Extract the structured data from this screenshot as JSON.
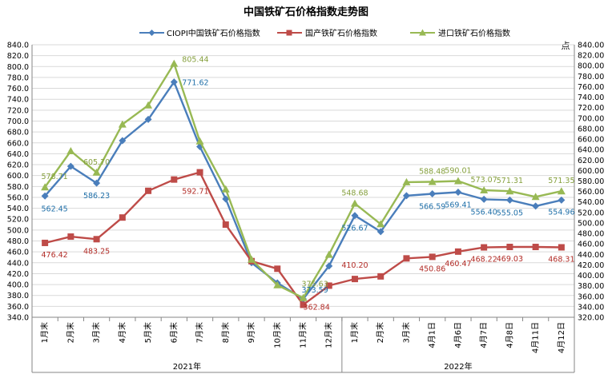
{
  "chart_data": {
    "type": "line",
    "title": "中国铁矿石价格指数走势图",
    "x": [
      "1月末",
      "2月末",
      "3月末",
      "4月末",
      "5月末",
      "6月末",
      "7月末",
      "8月末",
      "9月末",
      "10月末",
      "11月末",
      "12月末",
      "1月末",
      "2月末",
      "3月末",
      "4月1日",
      "4月6日",
      "4月7日",
      "4月8日",
      "4月11日",
      "4月12日"
    ],
    "x_groups": [
      {
        "label": "2021年",
        "start": 0,
        "end": 11
      },
      {
        "label": "2022年",
        "start": 12,
        "end": 20
      }
    ],
    "series": [
      {
        "name": "CIOPI中国铁矿石价格指数",
        "color": "#4a7ebb",
        "marker": "diamond",
        "values": [
          562.45,
          617,
          586.23,
          664,
          703,
          771.62,
          653,
          557,
          440,
          403,
          373.59,
          434,
          526.67,
          497,
          563,
          566.59,
          569.41,
          556.4,
          555.05,
          544,
          554.96
        ]
      },
      {
        "name": "国产铁矿石价格指数",
        "color": "#be4b48",
        "marker": "square",
        "values": [
          476.42,
          488,
          483.25,
          523,
          572,
          592.71,
          606,
          510,
          443,
          429,
          362.84,
          398,
          410.2,
          415,
          448,
          450.86,
          460.47,
          468.22,
          469.03,
          469,
          468.31
        ]
      },
      {
        "name": "进口铁矿石价格指数",
        "color": "#98b954",
        "marker": "triangle",
        "values": [
          578.71,
          645,
          605.7,
          694,
          729,
          805.44,
          663,
          575,
          446,
          399,
          375.63,
          455,
          548.68,
          511,
          588,
          588.48,
          590.01,
          573.07,
          571.31,
          561,
          571.35
        ]
      }
    ],
    "data_labels": [
      {
        "series": 0,
        "index": 0,
        "text": "562.45"
      },
      {
        "series": 0,
        "index": 2,
        "text": "586.23"
      },
      {
        "series": 0,
        "index": 5,
        "text": "771.62"
      },
      {
        "series": 0,
        "index": 10,
        "text": "373.59"
      },
      {
        "series": 0,
        "index": 12,
        "text": "526.67"
      },
      {
        "series": 0,
        "index": 15,
        "text": "566.59"
      },
      {
        "series": 0,
        "index": 16,
        "text": "569.41"
      },
      {
        "series": 0,
        "index": 17,
        "text": "556.40"
      },
      {
        "series": 0,
        "index": 18,
        "text": "555.05"
      },
      {
        "series": 0,
        "index": 20,
        "text": "554.96"
      },
      {
        "series": 1,
        "index": 0,
        "text": "476.42"
      },
      {
        "series": 1,
        "index": 2,
        "text": "483.25"
      },
      {
        "series": 1,
        "index": 5,
        "text": "592.71"
      },
      {
        "series": 1,
        "index": 10,
        "text": "362.84"
      },
      {
        "series": 1,
        "index": 12,
        "text": "410.20"
      },
      {
        "series": 1,
        "index": 15,
        "text": "450.86"
      },
      {
        "series": 1,
        "index": 16,
        "text": "460.47"
      },
      {
        "series": 1,
        "index": 17,
        "text": "468.22"
      },
      {
        "series": 1,
        "index": 18,
        "text": "469.03"
      },
      {
        "series": 1,
        "index": 20,
        "text": "468.31"
      },
      {
        "series": 2,
        "index": 0,
        "text": "578.71"
      },
      {
        "series": 2,
        "index": 2,
        "text": "605.70"
      },
      {
        "series": 2,
        "index": 5,
        "text": "805.44"
      },
      {
        "series": 2,
        "index": 10,
        "text": "375.63"
      },
      {
        "series": 2,
        "index": 12,
        "text": "548.68"
      },
      {
        "series": 2,
        "index": 15,
        "text": "588.48"
      },
      {
        "series": 2,
        "index": 16,
        "text": "590.01"
      },
      {
        "series": 2,
        "index": 17,
        "text": "573.07"
      },
      {
        "series": 2,
        "index": 18,
        "text": "571.31"
      },
      {
        "series": 2,
        "index": 20,
        "text": "571.35"
      }
    ],
    "ylim": [
      340,
      840
    ],
    "ytick_step": 20,
    "ytick_format": "0.0",
    "ylim_right": [
      320,
      840
    ],
    "ytick_step_right": 20,
    "ytick_format_right": "0.00",
    "ylabel_right": "点",
    "grid": true,
    "legend": "top"
  }
}
